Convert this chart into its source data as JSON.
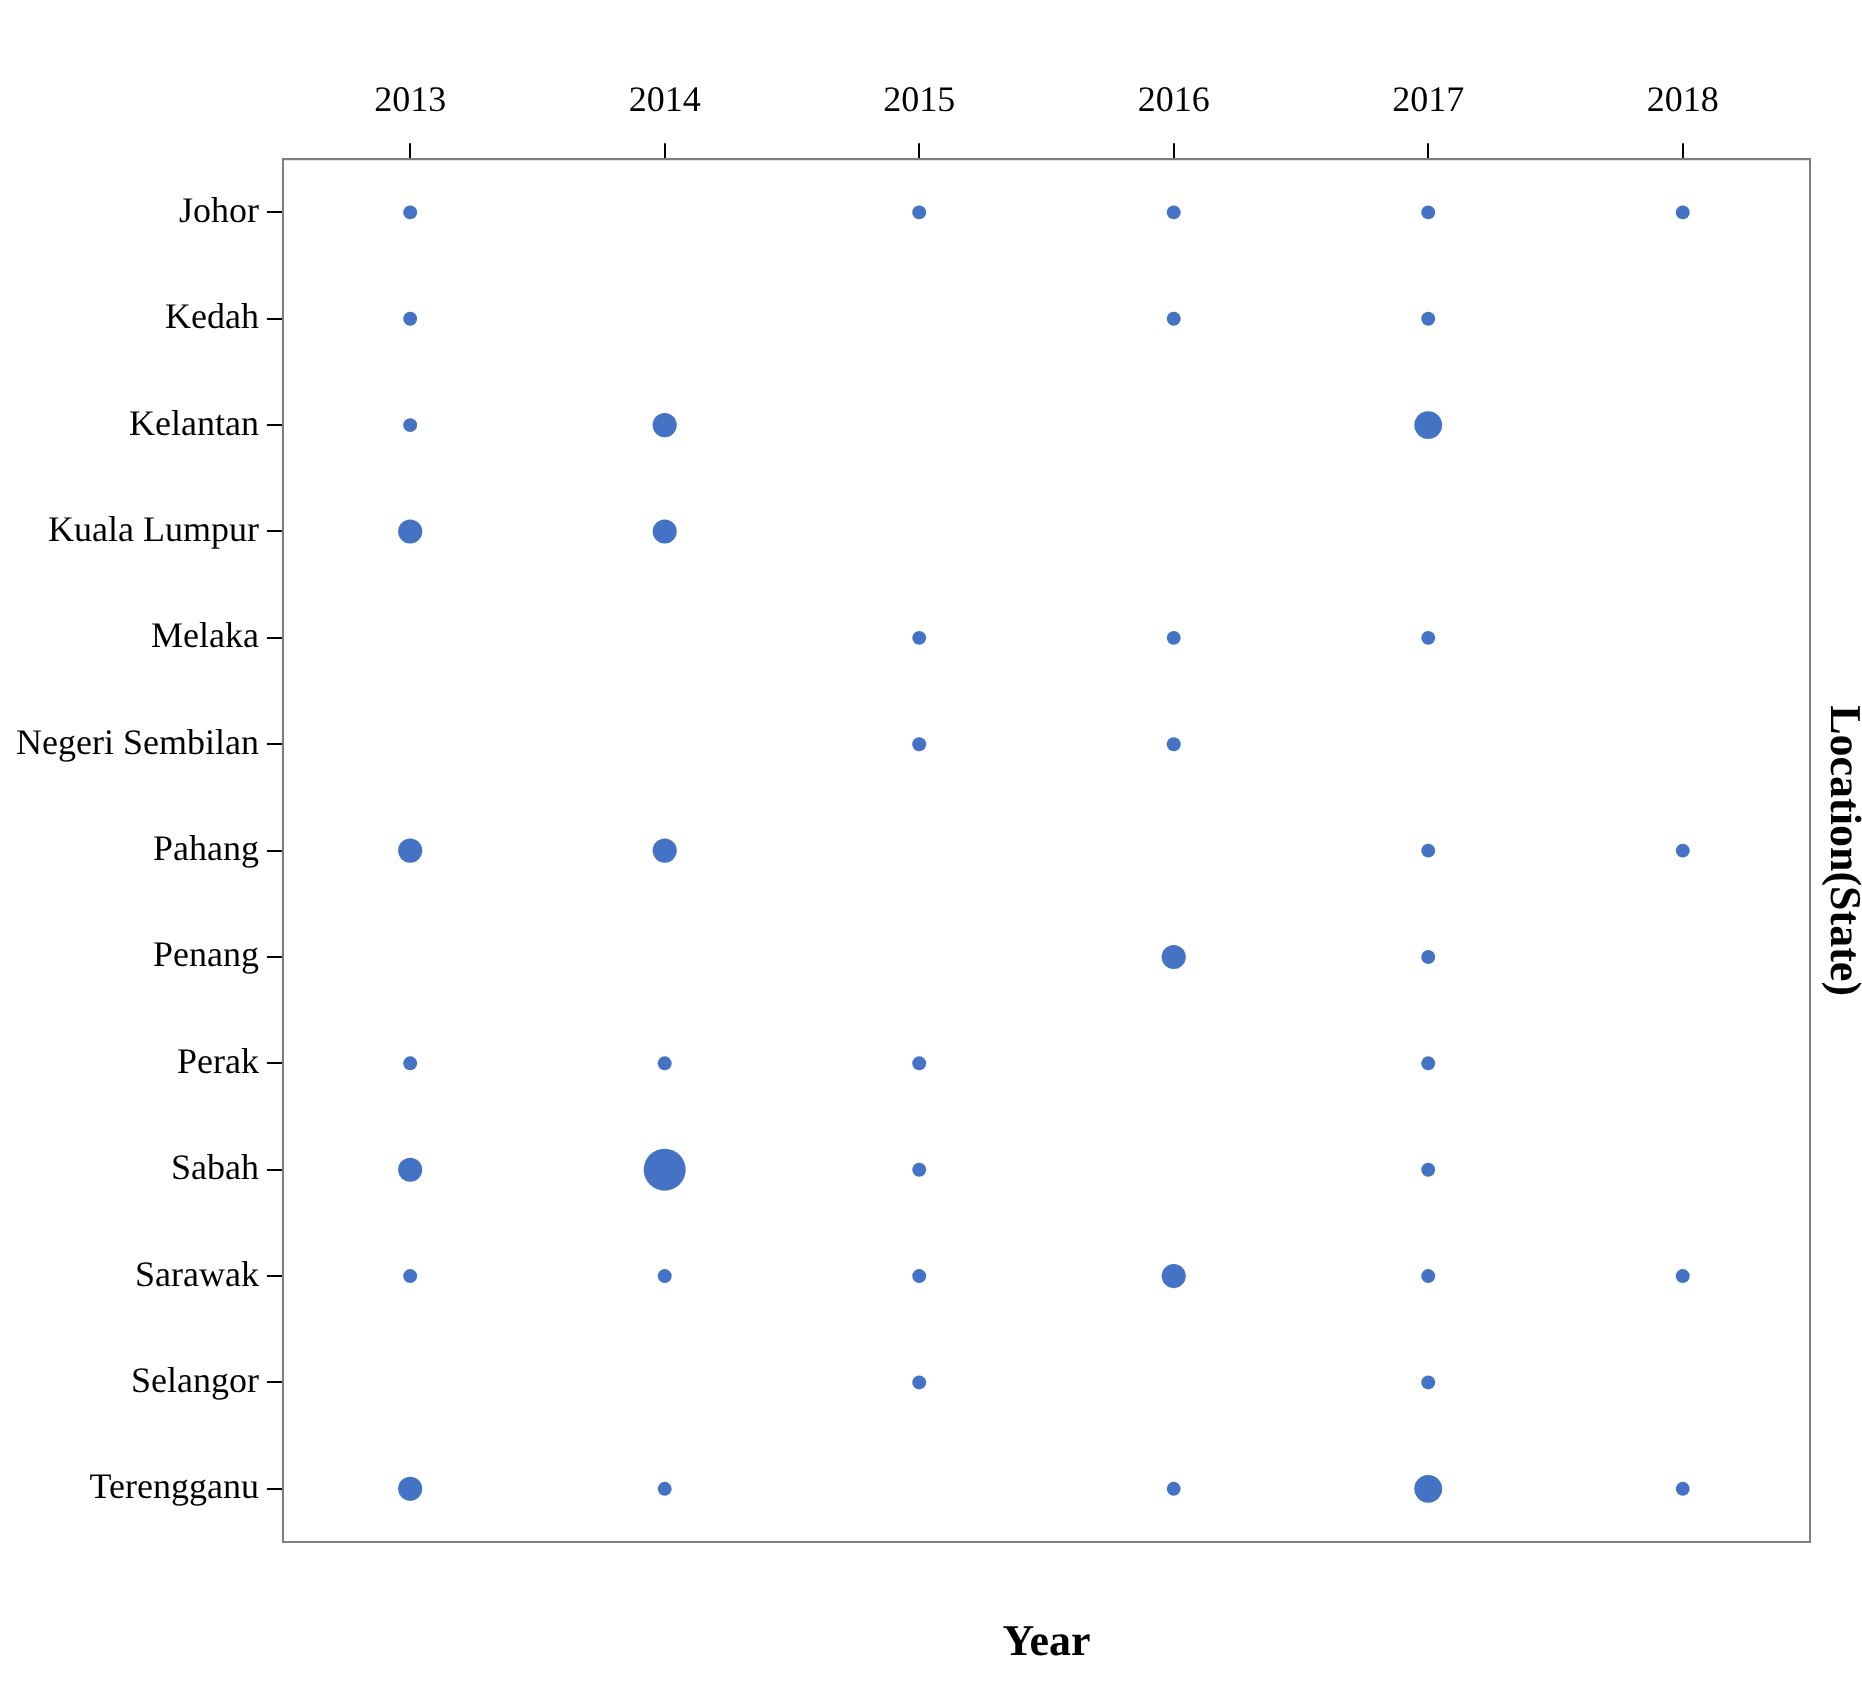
{
  "chart_data": {
    "type": "bubble",
    "orientation": "horizontal",
    "xlabel": "Year",
    "ylabel": "Location(State)",
    "grid": false,
    "legend": false,
    "xlim": [
      2012.5,
      2018.5
    ],
    "xticks": [
      2013,
      2014,
      2015,
      2016,
      2017,
      2018
    ],
    "categories": [
      "Johor",
      "Kedah",
      "Kelantan",
      "Kuala Lumpur",
      "Melaka",
      "Negeri Sembilan",
      "Pahang",
      "Penang",
      "Perak",
      "Sabah",
      "Sarawak",
      "Selangor",
      "Terengganu"
    ],
    "series": [
      {
        "color": "#4472c4",
        "values": [
          2013,
          2013,
          2013,
          2013,
          null,
          null,
          2013,
          null,
          2013,
          2013,
          2013,
          null,
          2013
        ],
        "sizes": [
          0.11,
          0.11,
          0.11,
          0.33,
          null,
          null,
          0.33,
          null,
          0.11,
          0.33,
          0.11,
          null,
          0.33
        ]
      },
      {
        "color": "#4472c4",
        "values": [
          null,
          null,
          2014,
          2014,
          null,
          null,
          2014,
          null,
          2014,
          2014,
          2014,
          null,
          2014
        ],
        "sizes": [
          null,
          null,
          0.33,
          0.33,
          null,
          null,
          0.33,
          null,
          0.11,
          1,
          0.11,
          null,
          0.11
        ]
      },
      {
        "color": "#4472c4",
        "values": [
          2015,
          null,
          null,
          null,
          2015,
          2015,
          null,
          null,
          2015,
          2015,
          2015,
          2015,
          null
        ],
        "sizes": [
          0.11,
          null,
          null,
          null,
          0.11,
          0.11,
          null,
          null,
          0.11,
          0.11,
          0.11,
          0.11,
          null
        ]
      },
      {
        "color": "#4472c4",
        "values": [
          2016,
          2016,
          null,
          null,
          2016,
          2016,
          null,
          2016,
          null,
          null,
          2016,
          null,
          2016
        ],
        "sizes": [
          0.11,
          0.11,
          null,
          null,
          0.11,
          0.11,
          null,
          0.33,
          null,
          null,
          0.33,
          null,
          0.11
        ]
      },
      {
        "color": "#4472c4",
        "values": [
          2017,
          2017,
          2017,
          null,
          2017,
          null,
          2017,
          2017,
          2017,
          2017,
          2017,
          2017,
          2017
        ],
        "sizes": [
          0.11,
          0.11,
          0.44,
          null,
          0.11,
          null,
          0.11,
          0.11,
          0.11,
          0.11,
          0.11,
          0.11,
          0.44
        ]
      },
      {
        "color": "#4472c4",
        "values": [
          2018,
          null,
          null,
          null,
          null,
          null,
          2018,
          null,
          null,
          null,
          2018,
          null,
          2018
        ],
        "sizes": [
          0.11,
          null,
          null,
          null,
          null,
          null,
          0.11,
          null,
          null,
          null,
          0.11,
          null,
          0.11
        ]
      }
    ]
  }
}
